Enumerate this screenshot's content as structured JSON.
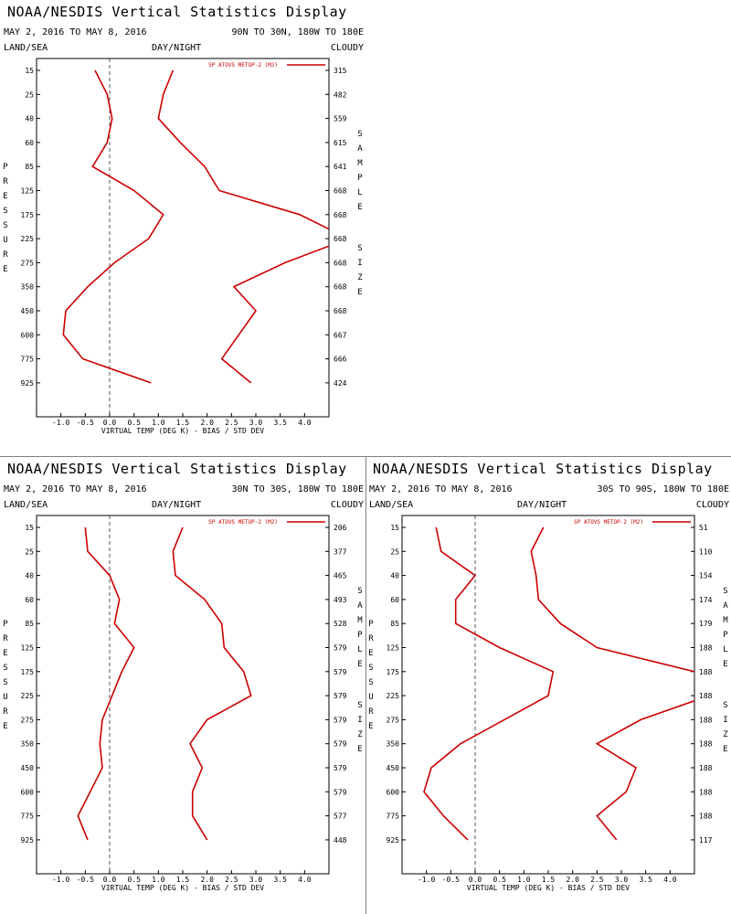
{
  "style": {
    "line_color": "#cc0000",
    "axis_color": "#000000",
    "zero_line_color": "#555555"
  },
  "chart_data": [
    {
      "type": "line",
      "title": "NOAA/NESDIS Vertical Statistics Display",
      "date_range": "MAY 2, 2016 TO MAY 8, 2016",
      "region": "90N TO 30N, 180W TO 180E",
      "corner_labels": {
        "left": "LAND/SEA",
        "center": "DAY/NIGHT",
        "right": "CLOUDY"
      },
      "legend": "SP ATOVS METOP-2 (M2)",
      "xlabel": "VIRTUAL TEMP (DEG K) - BIAS / STD DEV",
      "ylabel": "PRESSURE",
      "y2label": "SAMPLE SIZE",
      "xlim": [
        -1.5,
        4.5
      ],
      "x_ticks": [
        "-1.0",
        "-0.5",
        "0.0",
        "0.5",
        "1.0",
        "1.5",
        "2.0",
        "2.5",
        "3.0",
        "3.5",
        "4.0"
      ],
      "pressure_levels": [
        "15",
        "25",
        "40",
        "60",
        "85",
        "125",
        "175",
        "225",
        "275",
        "350",
        "450",
        "600",
        "775",
        "925"
      ],
      "sample_size": [
        "315",
        "482",
        "559",
        "615",
        "641",
        "668",
        "668",
        "668",
        "668",
        "668",
        "668",
        "667",
        "666",
        "424"
      ],
      "series": [
        {
          "values": [
            -0.3,
            -0.05,
            0.05,
            -0.05,
            -0.35,
            0.5,
            1.1,
            0.8,
            0.1,
            -0.45,
            -0.9,
            -0.95,
            -0.55,
            0.85
          ]
        },
        {
          "values": [
            1.3,
            1.1,
            1.0,
            1.45,
            1.95,
            2.25,
            3.9,
            4.9,
            3.6,
            2.55,
            3.0,
            2.65,
            2.3,
            2.9
          ]
        }
      ]
    },
    {
      "type": "line",
      "title": "NOAA/NESDIS Vertical Statistics Display",
      "date_range": "MAY 2, 2016 TO MAY 8, 2016",
      "region": "30N TO 30S, 180W TO 180E",
      "corner_labels": {
        "left": "LAND/SEA",
        "center": "DAY/NIGHT",
        "right": "CLOUDY"
      },
      "legend": "SP ATOVS METOP-2 (M2)",
      "xlabel": "VIRTUAL TEMP (DEG K) - BIAS / STD DEV",
      "ylabel": "PRESSURE",
      "y2label": "SAMPLE SIZE",
      "xlim": [
        -1.5,
        4.5
      ],
      "x_ticks": [
        "-1.0",
        "-0.5",
        "0.0",
        "0.5",
        "1.0",
        "1.5",
        "2.0",
        "2.5",
        "3.0",
        "3.5",
        "4.0"
      ],
      "pressure_levels": [
        "15",
        "25",
        "40",
        "60",
        "85",
        "125",
        "175",
        "225",
        "275",
        "350",
        "450",
        "600",
        "775",
        "925"
      ],
      "sample_size": [
        "206",
        "377",
        "465",
        "493",
        "528",
        "579",
        "579",
        "579",
        "579",
        "579",
        "579",
        "579",
        "577",
        "448"
      ],
      "series": [
        {
          "values": [
            -0.5,
            -0.45,
            0.0,
            0.2,
            0.1,
            0.5,
            0.25,
            0.05,
            -0.15,
            -0.2,
            -0.15,
            -0.4,
            -0.65,
            -0.45
          ]
        },
        {
          "values": [
            1.5,
            1.3,
            1.35,
            1.95,
            2.3,
            2.35,
            2.75,
            2.9,
            2.0,
            1.65,
            1.9,
            1.7,
            1.7,
            2.0
          ]
        }
      ]
    },
    {
      "type": "line",
      "title": "NOAA/NESDIS Vertical Statistics Display",
      "date_range": "MAY 2, 2016 TO MAY 8, 2016",
      "region": "30S TO 90S, 180W TO 180E",
      "corner_labels": {
        "left": "LAND/SEA",
        "center": "DAY/NIGHT",
        "right": "CLOUDY"
      },
      "legend": "SP ATOVS METOP-2 (M2)",
      "xlabel": "VIRTUAL TEMP (DEG K) - BIAS / STD DEV",
      "ylabel": "PRESSURE",
      "y2label": "SAMPLE SIZE",
      "xlim": [
        -1.5,
        4.5
      ],
      "x_ticks": [
        "-1.0",
        "-0.5",
        "0.0",
        "0.5",
        "1.0",
        "1.5",
        "2.0",
        "2.5",
        "3.0",
        "3.5",
        "4.0"
      ],
      "pressure_levels": [
        "15",
        "25",
        "40",
        "60",
        "85",
        "125",
        "175",
        "225",
        "275",
        "350",
        "450",
        "600",
        "775",
        "925"
      ],
      "sample_size": [
        "51",
        "110",
        "154",
        "174",
        "179",
        "188",
        "188",
        "188",
        "188",
        "188",
        "188",
        "188",
        "188",
        "117"
      ],
      "series": [
        {
          "values": [
            -0.8,
            -0.7,
            0.0,
            -0.4,
            -0.4,
            0.5,
            1.6,
            1.5,
            0.6,
            -0.3,
            -0.9,
            -1.05,
            -0.65,
            -0.15
          ]
        },
        {
          "values": [
            1.4,
            1.15,
            1.25,
            1.3,
            1.75,
            2.5,
            4.5,
            4.8,
            3.4,
            2.5,
            3.3,
            3.1,
            2.5,
            2.9
          ]
        }
      ]
    }
  ]
}
